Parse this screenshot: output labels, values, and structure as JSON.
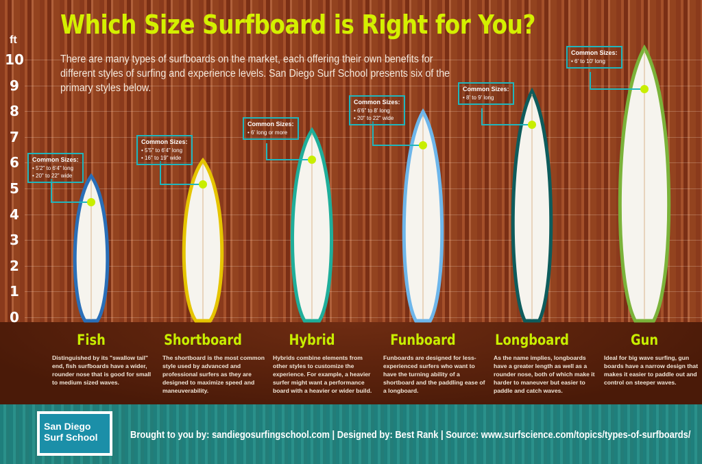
{
  "title": "Which Size Surfboard is Right for You?",
  "intro": "There are many types of surfboards on the market, each offering their own benefits for different styles of surfing and experience levels.  San Diego Surf School presents six of the primary styles below.",
  "axis": {
    "unit": "ft",
    "ticks": [
      "0",
      "1",
      "2",
      "3",
      "4",
      "5",
      "6",
      "7",
      "8",
      "9",
      "10"
    ]
  },
  "accent_color": "#c8ee00",
  "callout_color": "#1fb6bd",
  "boards": [
    {
      "name": "Fish",
      "sizes_label": "Common Sizes:",
      "sizes": [
        "• 5'2\" to 6'4\" long",
        "• 20\" to 22\" wide"
      ],
      "description": "Distinguished by its \"swallow tail\" end, fish surfboards have a wider, rounder nose that is good for small to medium sized waves."
    },
    {
      "name": "Shortboard",
      "sizes_label": "Common Sizes:",
      "sizes": [
        "• 5'5\" to 6'4\" long",
        "• 16\" to 19\" wide"
      ],
      "description": "The shortboard is the most common style used by advanced and professional surfers as they are designed to maximize speed and maneuverability."
    },
    {
      "name": "Hybrid",
      "sizes_label": "Common Sizes:",
      "sizes": [
        "• 6' long or more"
      ],
      "description": "Hybrids combine elements from other styles to customize the experience. For example, a heavier surfer might want a performance board with a heavier or wider build."
    },
    {
      "name": "Funboard",
      "sizes_label": "Common Sizes:",
      "sizes": [
        "• 6'6\" to 8' long",
        "• 20\" to 22\" wide"
      ],
      "description": "Funboards are designed for less- experienced surfers who want to have the turning ability of a shortboard and the paddling ease of a longboard."
    },
    {
      "name": "Longboard",
      "sizes_label": "Common Sizes:",
      "sizes": [
        "• 8' to 9' long"
      ],
      "description": "As the name implies, longboards have a greater length as well as a rounder nose, both of which make it harder to maneuver but easier to paddle and catch waves."
    },
    {
      "name": "Gun",
      "sizes_label": "Common Sizes:",
      "sizes": [
        "• 6' to 10' long"
      ],
      "description": "Ideal for big wave surfing, gun boards have a narrow design that makes it easier to paddle out and control on steeper waves."
    }
  ],
  "footer": {
    "logo_line1": "San Diego",
    "logo_line2": "Surf School",
    "credits": "Brought to you by: sandiegosurfingschool.com  |  Designed by: Best Rank  |  Source: www.surfscience.com/topics/types-of-surfboards/"
  }
}
